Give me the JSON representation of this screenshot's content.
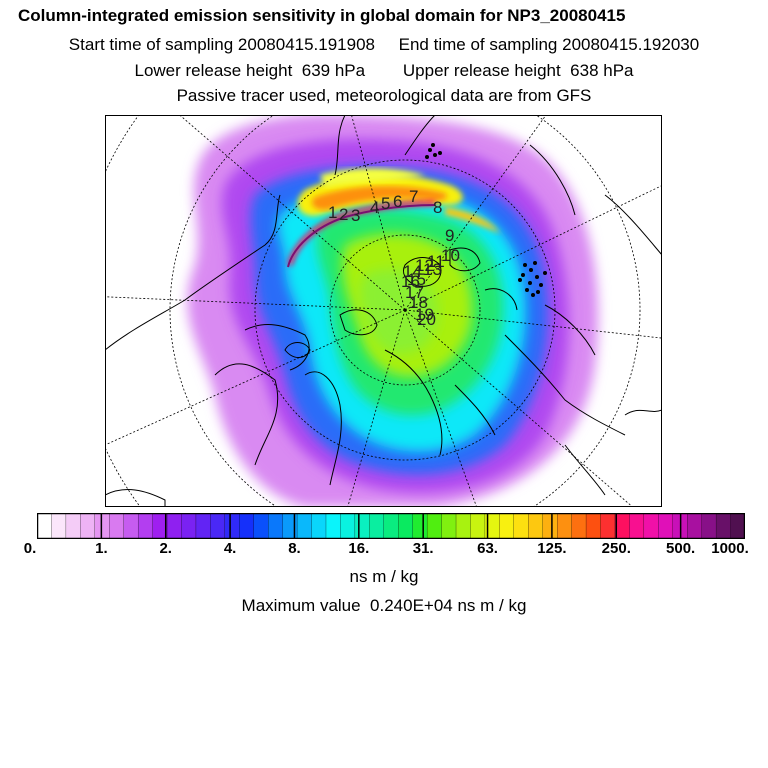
{
  "title": "Column-integrated emission sensitivity in global domain for NP3_20080415",
  "start_sampling": "Start time of sampling 20080415.191908",
  "end_sampling": "End time of sampling 20080415.192030",
  "lower_release": "Lower release height  639 hPa",
  "upper_release": "Upper release height  638 hPa",
  "tracer_note": "Passive tracer used, meteorological data are from GFS",
  "colorbar": {
    "colors": [
      "#ffffff",
      "#fbe6fb",
      "#f4ccf7",
      "#eeb3f5",
      "#e596f2",
      "#d97af0",
      "#c65cf0",
      "#b33ef0",
      "#9f1ff0",
      "#8f20f0",
      "#7a22f2",
      "#6224f4",
      "#4a28f6",
      "#302af8",
      "#1530fa",
      "#0a50fb",
      "#0a78fb",
      "#0a9afb",
      "#0ab8fb",
      "#0ad6fb",
      "#0af4fb",
      "#0af2e0",
      "#0af0c0",
      "#0aeea0",
      "#0aec80",
      "#0aea60",
      "#20ec30",
      "#50ee10",
      "#80f010",
      "#a8f210",
      "#c8f410",
      "#e4f610",
      "#f8f010",
      "#fde010",
      "#fdc810",
      "#fdb010",
      "#fd9010",
      "#fd7010",
      "#fd5010",
      "#fd3030",
      "#fd1060",
      "#f81090",
      "#f010a8",
      "#e010b8",
      "#c810b8",
      "#a810a0",
      "#881088",
      "#681068",
      "#501050"
    ],
    "tick_labels": [
      "0.",
      "1.",
      "2.",
      "4.",
      "8.",
      "16.",
      "31.",
      "63.",
      "125.",
      "250.",
      "500.",
      "1000."
    ],
    "units": "ns m / kg"
  },
  "max_value": "Maximum value  0.240E+04 ns m / kg",
  "map": {
    "projection": "north-polar-stereographic",
    "trajectory_labels": [
      "1",
      "2",
      "3",
      "4",
      "5",
      "6",
      "7",
      "8",
      "9",
      "10",
      "11",
      "12",
      "13",
      "14",
      "15",
      "16",
      "17",
      "18",
      "19",
      "20"
    ]
  }
}
